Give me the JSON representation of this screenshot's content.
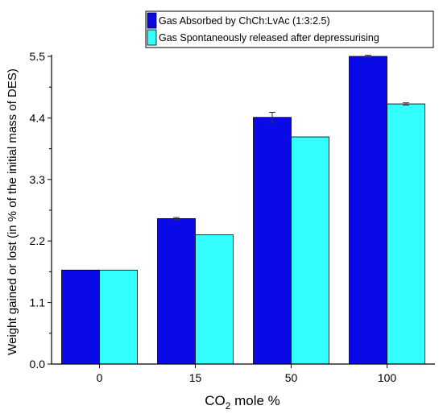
{
  "chart_data": {
    "type": "bar",
    "categories": [
      "0",
      "15",
      "50",
      "100"
    ],
    "series": [
      {
        "name": "Gas Absorbed by ChCh:LvAc (1:3:2.5)",
        "values": [
          1.68,
          2.6,
          4.41,
          5.5
        ],
        "errors": [
          0.0,
          0.02,
          0.09,
          0.02
        ],
        "color": "#0a0ae6"
      },
      {
        "name": "Gas Spontaneously released after depressurising",
        "values": [
          1.68,
          2.31,
          4.06,
          4.65
        ],
        "errors": [
          0.0,
          0.0,
          0.0,
          0.02
        ],
        "color": "#33ffff"
      }
    ],
    "xlabel": {
      "main": "CO",
      "sub": "2",
      "rest": " mole %"
    },
    "ylabel": "Weight gained or lost (in % of the initial mass of DES)",
    "ylim": [
      0.0,
      5.5
    ],
    "yticks": [
      "0.0",
      "1.1",
      "2.2",
      "3.3",
      "4.4",
      "5.5"
    ],
    "legend_position": "top-right",
    "grid": false
  }
}
